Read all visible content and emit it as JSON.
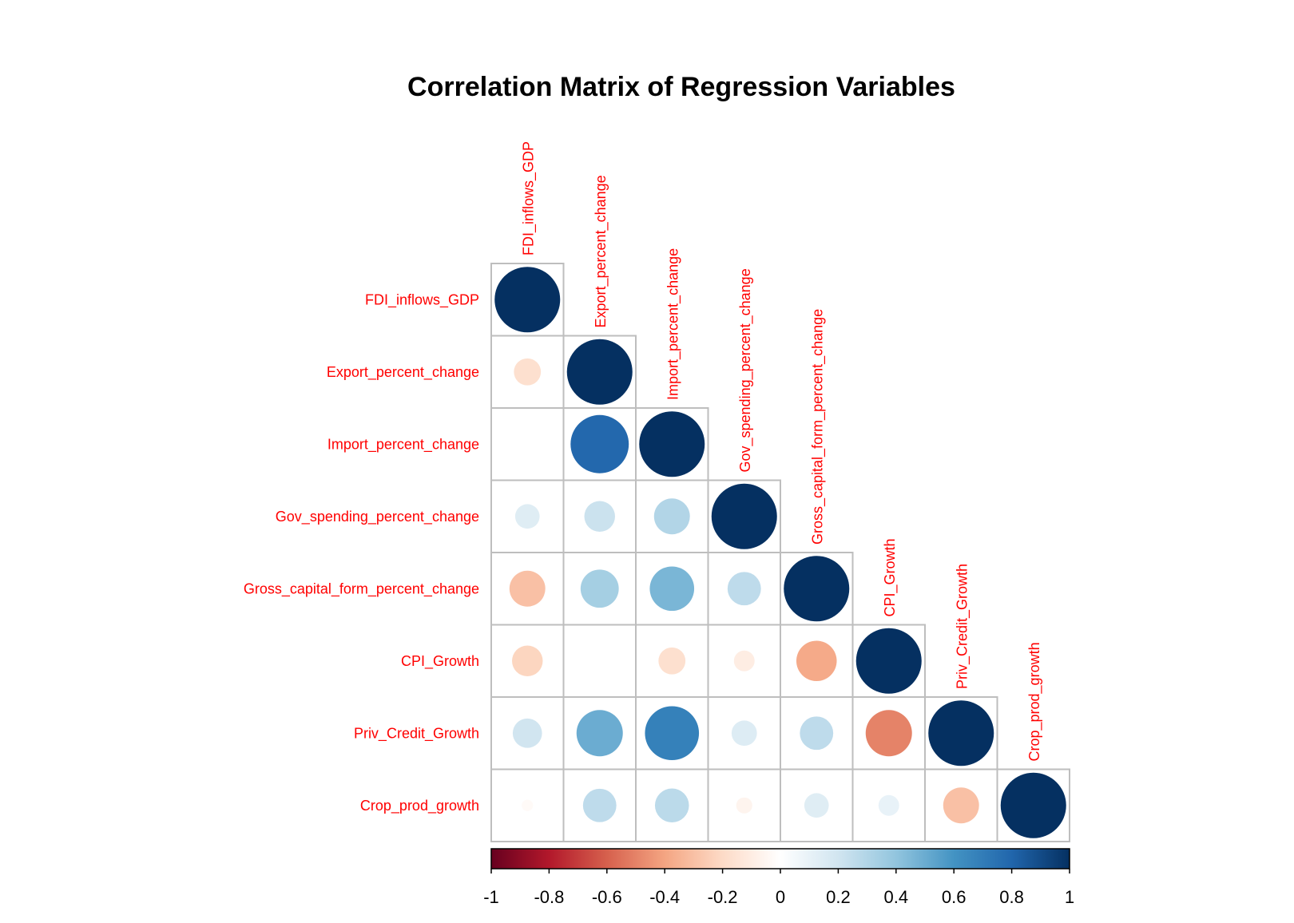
{
  "chart_data": {
    "type": "heatmap",
    "title": "Correlation Matrix of Regression Variables",
    "variables": [
      "FDI_inflows_GDP",
      "Export_percent_change",
      "Import_percent_change",
      "Gov_spending_percent_change",
      "Gross_capital_form_percent_change",
      "CPI_Growth",
      "Priv_Credit_Growth",
      "Crop_prod_growth"
    ],
    "matrix": [
      [
        1.0,
        -0.17,
        0.0,
        0.14,
        -0.3,
        -0.22,
        0.2,
        -0.03
      ],
      [
        -0.17,
        1.0,
        0.79,
        0.22,
        0.34,
        0.0,
        0.5,
        0.26
      ],
      [
        0.0,
        0.79,
        1.0,
        0.3,
        0.46,
        -0.17,
        0.68,
        0.27
      ],
      [
        0.14,
        0.22,
        0.3,
        1.0,
        0.26,
        -0.1,
        0.15,
        -0.06
      ],
      [
        -0.3,
        0.34,
        0.46,
        0.26,
        1.0,
        -0.38,
        0.26,
        0.14
      ],
      [
        -0.22,
        0.0,
        -0.17,
        -0.1,
        -0.38,
        1.0,
        -0.5,
        0.1
      ],
      [
        0.2,
        0.5,
        0.68,
        0.15,
        0.26,
        -0.5,
        1.0,
        -0.3
      ],
      [
        -0.03,
        0.26,
        0.27,
        -0.06,
        0.14,
        0.1,
        -0.3,
        1.0
      ]
    ],
    "triangle": "lower",
    "method": "circle",
    "colorbar": {
      "range": [
        -1,
        1
      ],
      "ticks": [
        "-1",
        "-0.8",
        "-0.6",
        "-0.4",
        "-0.2",
        "0",
        "0.2",
        "0.4",
        "0.6",
        "0.8",
        "1"
      ],
      "placement": "bottom"
    },
    "colors": {
      "labels": "#ff0000",
      "grid": "#bebebe",
      "scale": [
        "#67001F",
        "#B2182B",
        "#D6604D",
        "#F4A582",
        "#FDDBC7",
        "#FFFFFF",
        "#D1E5F0",
        "#92C5DE",
        "#4393C3",
        "#2166AC",
        "#053061"
      ]
    }
  }
}
